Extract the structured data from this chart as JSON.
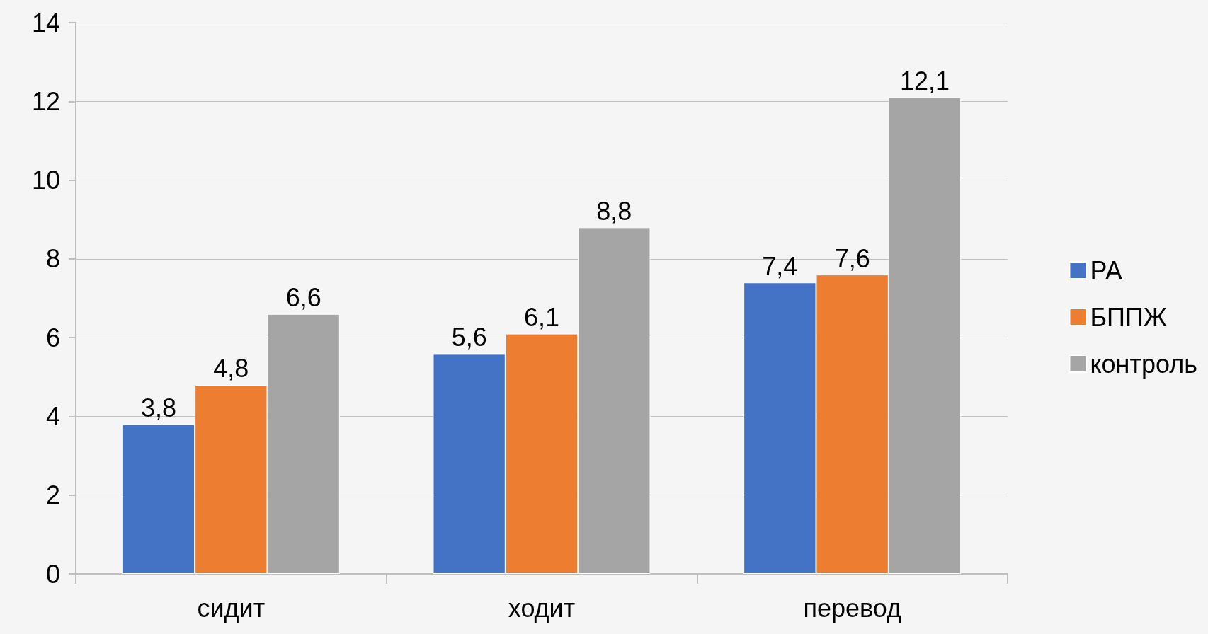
{
  "chart_data": {
    "type": "bar",
    "categories": [
      "сидит",
      "ходит",
      "перевод"
    ],
    "series": [
      {
        "name": "РА",
        "color": "#4472c4",
        "values": [
          3.8,
          5.6,
          7.4
        ],
        "value_labels": [
          "3,8",
          "5,6",
          "7,4"
        ]
      },
      {
        "name": "БППЖ",
        "color": "#ed7d31",
        "values": [
          4.8,
          6.1,
          7.6
        ],
        "value_labels": [
          "4,8",
          "6,1",
          "7,6"
        ]
      },
      {
        "name": "контроль",
        "color": "#a5a5a5",
        "values": [
          6.6,
          8.8,
          12.1
        ],
        "value_labels": [
          "6,6",
          "8,8",
          "12,1"
        ]
      }
    ],
    "ylim": [
      0,
      14
    ],
    "yticks": [
      0,
      2,
      4,
      6,
      8,
      10,
      12,
      14
    ],
    "grid": "y",
    "legend": "right"
  }
}
